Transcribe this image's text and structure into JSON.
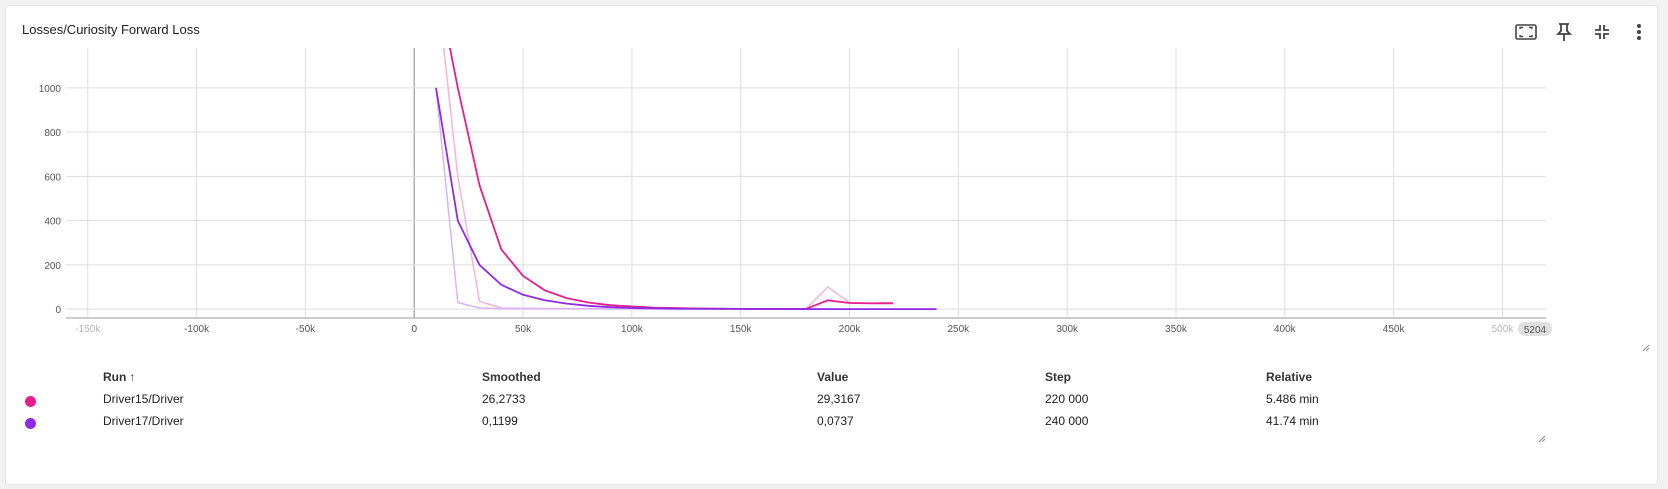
{
  "card": {
    "title": "Losses/Curiosity Forward Loss"
  },
  "toolbar": {
    "buttons": [
      {
        "name": "fit-domain-button",
        "icon": "fit-to-screen-icon"
      },
      {
        "name": "pin-button",
        "icon": "pin-icon"
      },
      {
        "name": "collapse-button",
        "icon": "collapse-icon"
      },
      {
        "name": "more-button",
        "icon": "more-vert-icon"
      }
    ]
  },
  "chart_data": {
    "type": "line",
    "title": "",
    "xlabel": "",
    "ylabel": "",
    "xlim": [
      -160000,
      520000
    ],
    "ylim": [
      -40,
      1180
    ],
    "x_ticks": [
      "-150k",
      "-100k",
      "-50k",
      "0",
      "50k",
      "100k",
      "150k",
      "200k",
      "250k",
      "300k",
      "350k",
      "400k",
      "450k",
      "500k"
    ],
    "x_tick_values": [
      -150000,
      -100000,
      -50000,
      0,
      50000,
      100000,
      150000,
      200000,
      250000,
      300000,
      350000,
      400000,
      450000,
      500000
    ],
    "x_tick_faded": [
      "-150k",
      "500k"
    ],
    "x_edge_label": "5204",
    "y_ticks": [
      "0",
      "200",
      "400",
      "600",
      "800",
      "1000"
    ],
    "y_tick_values": [
      0,
      200,
      400,
      600,
      800,
      1000
    ],
    "grid": true,
    "series": [
      {
        "name": "Driver15/Driver",
        "color": "#e91e8c",
        "raw_color": "#f7b3d8",
        "smoothed": [
          [
            10000,
            1500
          ],
          [
            20000,
            1000
          ],
          [
            30000,
            560
          ],
          [
            40000,
            270
          ],
          [
            50000,
            150
          ],
          [
            60000,
            85
          ],
          [
            70000,
            50
          ],
          [
            80000,
            30
          ],
          [
            90000,
            18
          ],
          [
            100000,
            12
          ],
          [
            110000,
            7
          ],
          [
            120000,
            5
          ],
          [
            130000,
            3
          ],
          [
            140000,
            2
          ],
          [
            150000,
            1
          ],
          [
            160000,
            1
          ],
          [
            170000,
            1
          ],
          [
            180000,
            1
          ],
          [
            190000,
            40
          ],
          [
            200000,
            28
          ],
          [
            210000,
            26
          ],
          [
            220000,
            26.2733
          ]
        ],
        "raw": [
          [
            10000,
            1500
          ],
          [
            20000,
            600
          ],
          [
            30000,
            35
          ],
          [
            40000,
            5
          ],
          [
            60000,
            3
          ],
          [
            100000,
            2
          ],
          [
            150000,
            1
          ],
          [
            180000,
            1
          ],
          [
            190000,
            100
          ],
          [
            200000,
            30
          ],
          [
            210000,
            28
          ],
          [
            220000,
            29.3167
          ]
        ]
      },
      {
        "name": "Driver17/Driver",
        "color": "#8f2ae8",
        "raw_color": "#d8b4f5",
        "smoothed": [
          [
            10000,
            1000
          ],
          [
            20000,
            400
          ],
          [
            30000,
            200
          ],
          [
            40000,
            110
          ],
          [
            50000,
            65
          ],
          [
            60000,
            40
          ],
          [
            70000,
            25
          ],
          [
            80000,
            15
          ],
          [
            90000,
            9
          ],
          [
            100000,
            5
          ],
          [
            120000,
            2
          ],
          [
            150000,
            1
          ],
          [
            200000,
            0.4
          ],
          [
            240000,
            0.1199
          ]
        ],
        "raw": [
          [
            10000,
            1000
          ],
          [
            20000,
            30
          ],
          [
            30000,
            5
          ],
          [
            40000,
            2
          ],
          [
            60000,
            1
          ],
          [
            100000,
            0.5
          ],
          [
            150000,
            0.2
          ],
          [
            200000,
            0.1
          ],
          [
            240000,
            0.0737
          ]
        ]
      }
    ]
  },
  "table": {
    "headers": {
      "run": "Run",
      "smoothed": "Smoothed",
      "value": "Value",
      "step": "Step",
      "relative": "Relative"
    },
    "sort_arrow": "↑",
    "rows": [
      {
        "color": "#e91e8c",
        "run": "Driver15/Driver",
        "smoothed": "26,2733",
        "value": "29,3167",
        "step": "220 000",
        "relative": "5.486 min"
      },
      {
        "color": "#8f2ae8",
        "run": "Driver17/Driver",
        "smoothed": "0,1199",
        "value": "0,0737",
        "step": "240 000",
        "relative": "41.74 min"
      }
    ]
  }
}
